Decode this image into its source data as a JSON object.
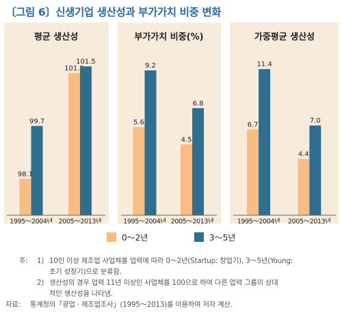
{
  "title": "〔그림 6〕신생기업 생산성과 부가가치 비중 변화",
  "colors": {
    "series_0_2": "#f8bd82",
    "series_3_5": "#2e6e8e",
    "background": "#f7ecdc",
    "title": "#2b6aa3"
  },
  "legend": {
    "items": [
      "0～2년",
      "3～5년"
    ]
  },
  "chart_data": [
    {
      "type": "bar",
      "title": "평균 생산성",
      "categories": [
        "1995～2004년",
        "2005～2013년"
      ],
      "series": [
        {
          "name": "0～2년",
          "values": [
            98.1,
            101.3
          ]
        },
        {
          "name": "3～5년",
          "values": [
            99.7,
            101.5
          ]
        }
      ],
      "ylim": [
        97,
        102
      ],
      "value_labels": [
        [
          "98.1",
          "101.3"
        ],
        [
          "99.7",
          "101.5"
        ]
      ]
    },
    {
      "type": "bar",
      "title": "부가가치 비중(%)",
      "categories": [
        "1995～2004년",
        "2005～2013년"
      ],
      "series": [
        {
          "name": "0～2년",
          "values": [
            5.6,
            4.5
          ]
        },
        {
          "name": "3～5년",
          "values": [
            9.2,
            6.8
          ]
        }
      ],
      "ylim": [
        0,
        10.5
      ],
      "value_labels": [
        [
          "5.6",
          "4.5"
        ],
        [
          "9.2",
          "6.8"
        ]
      ]
    },
    {
      "type": "bar",
      "title": "가중평균 생산성",
      "categories": [
        "1995～2004년",
        "2005～2013년"
      ],
      "series": [
        {
          "name": "0～2년",
          "values": [
            6.7,
            4.4
          ]
        },
        {
          "name": "3～5년",
          "values": [
            11.4,
            7.0
          ]
        }
      ],
      "ylim": [
        0,
        12.9
      ],
      "value_labels": [
        [
          "6.7",
          "4.4"
        ],
        [
          "11.4",
          "7.0"
        ]
      ]
    }
  ],
  "notes": {
    "lines": [
      {
        "lead": "주:",
        "num": "1)",
        "text": "10인 이상 제조업 사업체를 업력에 따라 0～2년(Startup: 창업기), 3～5년(Young:"
      },
      {
        "lead": "",
        "num": "",
        "text": "초기 성장기)으로 분류함."
      },
      {
        "lead": "",
        "num": "2)",
        "text": "생산성의 경우 업력 11년 이상인 사업체를 100으로 하여 다른 업력 그룹의 상대"
      },
      {
        "lead": "",
        "num": "",
        "text": "적인 생산성을 나타냄."
      },
      {
        "lead": "자료:",
        "num": "",
        "text": "통계청의「광업 · 제조업조사」(1995～2013)를 이용하여 저자 계산."
      }
    ]
  }
}
